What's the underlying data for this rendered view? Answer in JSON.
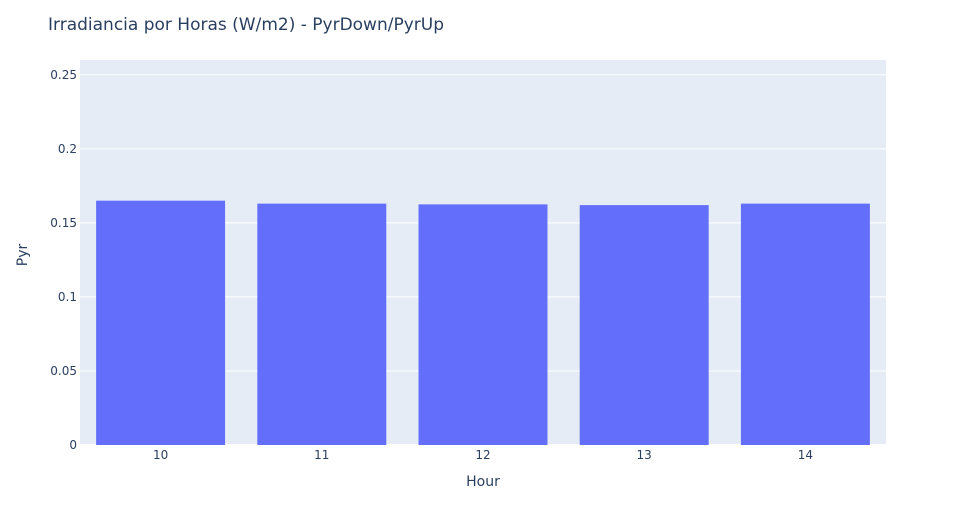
{
  "chart_data": {
    "type": "bar",
    "title": "Irradiancia por Horas (W/m2) - PyrDown/PyrUp",
    "xlabel": "Hour",
    "ylabel": "Pyr",
    "categories": [
      "10",
      "11",
      "12",
      "13",
      "14"
    ],
    "values": [
      0.165,
      0.163,
      0.1625,
      0.162,
      0.163
    ],
    "ylim": [
      0,
      0.26
    ],
    "yticks": [
      0,
      0.05,
      0.1,
      0.15,
      0.2,
      0.25
    ],
    "ytick_labels": [
      "0",
      "0.05",
      "0.1",
      "0.15",
      "0.2",
      "0.25"
    ],
    "grid": true,
    "colors": {
      "bar": "#636efa",
      "plot_bg": "#e5ecf6",
      "text": "#2a3f5f"
    }
  }
}
